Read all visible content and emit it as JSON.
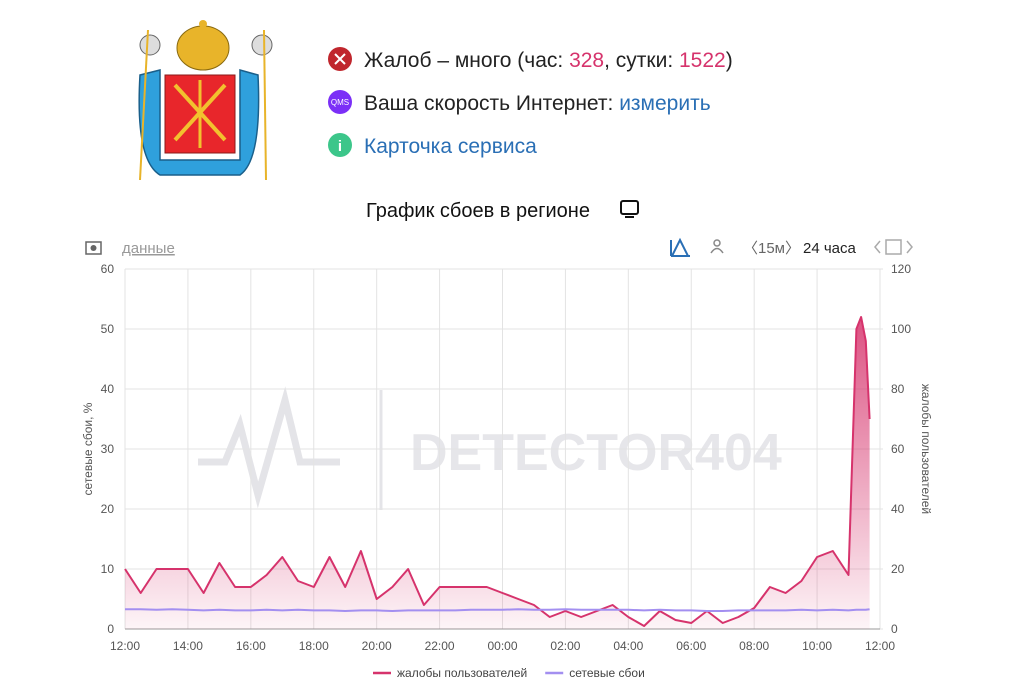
{
  "status": [
    {
      "parts": [
        "Жалоб – много (час: ",
        328,
        ", сутки: ",
        1522,
        ")"
      ]
    },
    {
      "icon": "QMS",
      "parts": [
        "Ваша скорость Интернет: ",
        "измерить"
      ]
    },
    {
      "parts": [
        "Карточка сервиса"
      ]
    }
  ],
  "toolbar": {
    "data_link": "данные",
    "interval": "〈15м〉",
    "period": "24 часа"
  },
  "watermark": "DETECTOR404",
  "chart_data": {
    "type": "line",
    "title": "График сбоев в регионе",
    "y_label": "сетевые сбои, %",
    "y2_label": "жалобы пользователей",
    "x": [
      0,
      0.5,
      1,
      1.5,
      2,
      2.5,
      3,
      3.5,
      4,
      4.5,
      5,
      5.5,
      6,
      6.5,
      7,
      7.5,
      8,
      8.5,
      9,
      9.5,
      10,
      10.5,
      11,
      11.5,
      12,
      12.5,
      13,
      13.5,
      14,
      14.5,
      15,
      15.5,
      16,
      16.5,
      17,
      17.5,
      18,
      18.5,
      19,
      19.5,
      20,
      20.5,
      21,
      21.5,
      22,
      22.5,
      23,
      23.25,
      23.4,
      23.55,
      23.67
    ],
    "xlim": [
      0,
      24
    ],
    "xticks": [
      {
        "value": 0,
        "label": "12:00"
      },
      {
        "value": 2,
        "label": "14:00"
      },
      {
        "value": 4,
        "label": "16:00"
      },
      {
        "value": 6,
        "label": "18:00"
      },
      {
        "value": 8,
        "label": "20:00"
      },
      {
        "value": 10,
        "label": "22:00"
      },
      {
        "value": 12,
        "label": "00:00"
      },
      {
        "value": 14,
        "label": "02:00"
      },
      {
        "value": 16,
        "label": "04:00"
      },
      {
        "value": 18,
        "label": "06:00"
      },
      {
        "value": 20,
        "label": "08:00"
      },
      {
        "value": 22,
        "label": "10:00"
      },
      {
        "value": 24,
        "label": "12:00"
      }
    ],
    "ylim": [
      0,
      60
    ],
    "yticks": [
      0,
      10,
      20,
      30,
      40,
      50,
      60
    ],
    "y2lim": [
      0,
      120
    ],
    "y2ticks": [
      0,
      20,
      40,
      60,
      80,
      100,
      120
    ],
    "grid": true,
    "legend": "bottom",
    "series": [
      {
        "name": "жалобы пользователей",
        "color": "#d6336c",
        "axis": "y2",
        "fill": true,
        "values": [
          20,
          12,
          20,
          20,
          20,
          12,
          22,
          14,
          14,
          18,
          24,
          16,
          14,
          24,
          14,
          26,
          10,
          14,
          20,
          8,
          14,
          14,
          14,
          14,
          12,
          10,
          8,
          4,
          6,
          4,
          6,
          8,
          4,
          1,
          6,
          3,
          2,
          6,
          2,
          4,
          7,
          14,
          12,
          16,
          24,
          26,
          18,
          100,
          104,
          96,
          70
        ]
      },
      {
        "name": "сетевые сбои",
        "color": "#a38ff0",
        "axis": "y",
        "fill": false,
        "values": [
          3.3,
          3.3,
          3.2,
          3.3,
          3.2,
          3.1,
          3.2,
          3.1,
          3.1,
          3.2,
          3.1,
          3.2,
          3.1,
          3.1,
          3.0,
          3.1,
          3.1,
          3.0,
          3.1,
          3.1,
          3.1,
          3.1,
          3.2,
          3.2,
          3.2,
          3.3,
          3.2,
          3.2,
          3.3,
          3.2,
          3.2,
          3.2,
          3.2,
          3.1,
          3.2,
          3.1,
          3.1,
          3.0,
          3.0,
          3.1,
          3.1,
          3.1,
          3.1,
          3.2,
          3.1,
          3.2,
          3.1,
          3.2,
          3.2,
          3.2,
          3.3
        ]
      }
    ]
  }
}
